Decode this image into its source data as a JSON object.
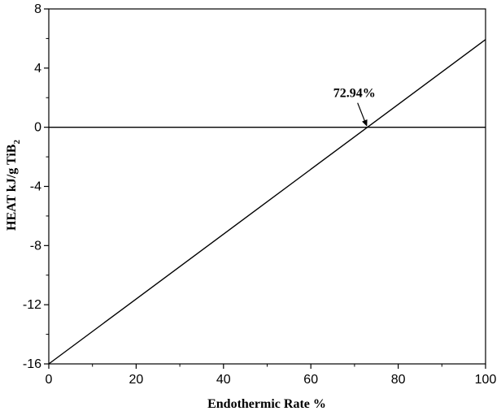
{
  "chart_data": {
    "type": "line",
    "title": "",
    "xlabel": "Endothermic Rate %",
    "ylabel_main": "HEAT kJ/g TiB",
    "ylabel_sub": "2",
    "xlim": [
      0,
      100
    ],
    "ylim": [
      -16,
      8
    ],
    "xticks": [
      0,
      20,
      40,
      60,
      80,
      100
    ],
    "yticks": [
      -16,
      -12,
      -8,
      -4,
      0,
      4,
      8
    ],
    "x_minor_step": 10,
    "y_minor_step": 2,
    "grid": false,
    "series": [
      {
        "x": [
          0,
          100
        ],
        "y": [
          -16.0,
          5.93
        ],
        "color": "#000000"
      }
    ],
    "reference_lines": [
      {
        "axis": "y",
        "value": 0,
        "color": "#000000"
      }
    ],
    "annotations": [
      {
        "text": "72.94%",
        "x": 72.94,
        "y": 0
      }
    ]
  }
}
